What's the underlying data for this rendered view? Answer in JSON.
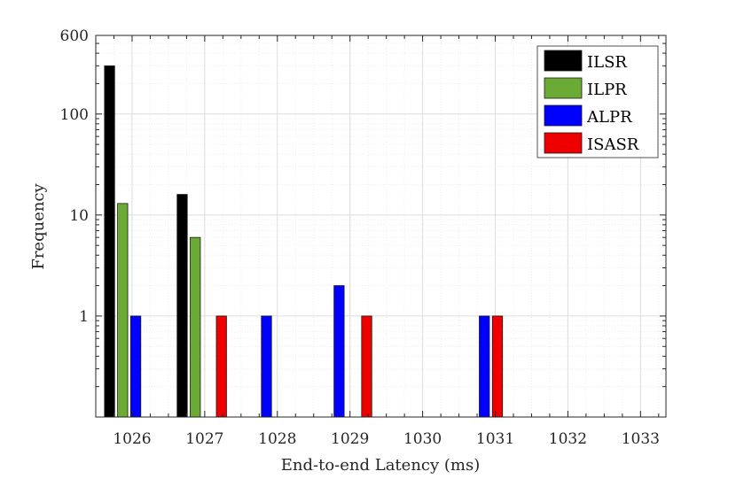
{
  "chart_data": {
    "type": "bar",
    "xlabel": "End-to-end Latency (ms)",
    "ylabel": "Frequency",
    "y_scale": "log",
    "ylim": [
      0.1,
      600
    ],
    "xlim": [
      1025.5,
      1033.35
    ],
    "y_ticks": [
      1,
      10,
      100,
      600
    ],
    "y_tick_labels": [
      "1",
      "10",
      "100",
      "600"
    ],
    "categories": [
      "1026",
      "1027",
      "1028",
      "1029",
      "1030",
      "1031",
      "1032",
      "1033"
    ],
    "grid": true,
    "legend_position": "top-right",
    "series": [
      {
        "name": "ILSR",
        "color": "#000000",
        "points": [
          {
            "x": 1025.69,
            "y": 300
          },
          {
            "x": 1026.69,
            "y": 16
          }
        ]
      },
      {
        "name": "ILPR",
        "color": "#6aaa35",
        "points": [
          {
            "x": 1025.87,
            "y": 13
          },
          {
            "x": 1026.87,
            "y": 6
          }
        ]
      },
      {
        "name": "ALPR",
        "color": "#0000ff",
        "points": [
          {
            "x": 1026.05,
            "y": 1
          },
          {
            "x": 1027.85,
            "y": 1
          },
          {
            "x": 1028.85,
            "y": 2
          },
          {
            "x": 1030.85,
            "y": 1
          }
        ]
      },
      {
        "name": "ISASR",
        "color": "#ee0000",
        "points": [
          {
            "x": 1027.23,
            "y": 1
          },
          {
            "x": 1029.23,
            "y": 1
          },
          {
            "x": 1031.03,
            "y": 1
          }
        ]
      }
    ]
  }
}
